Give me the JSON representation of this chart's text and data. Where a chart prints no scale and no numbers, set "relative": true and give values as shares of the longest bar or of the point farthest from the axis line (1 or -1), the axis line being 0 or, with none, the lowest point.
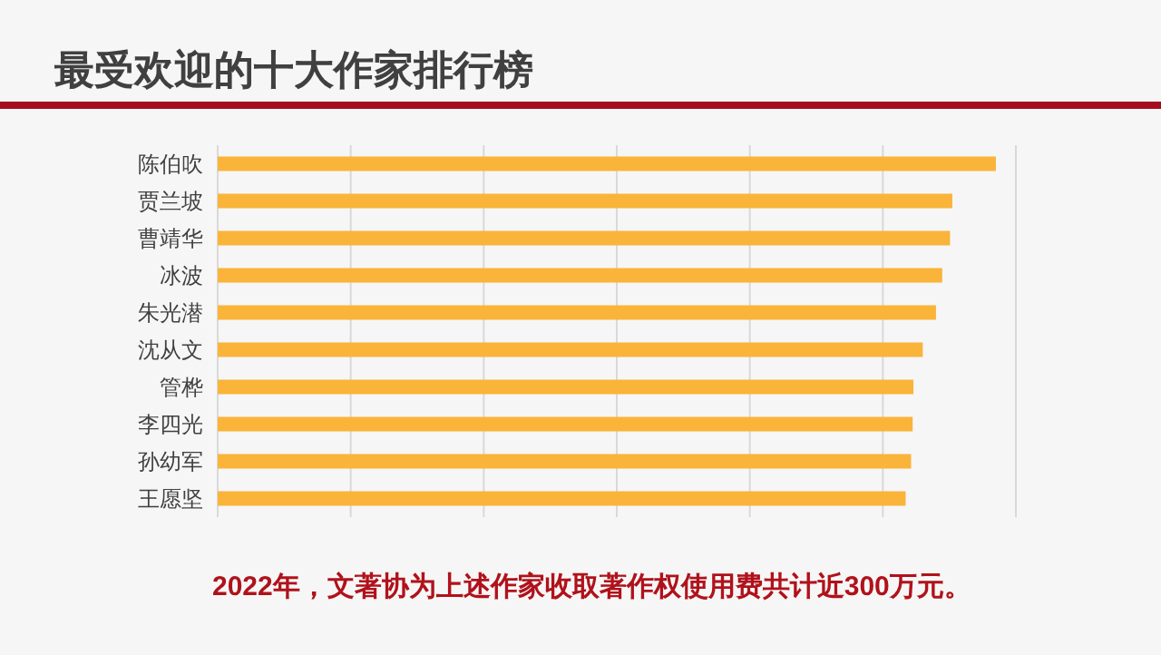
{
  "chart_data": {
    "type": "bar",
    "orientation": "horizontal",
    "relative": true,
    "title": "最受欢迎的十大作家排行榜",
    "categories": [
      "陈伯吹",
      "贾兰坡",
      "曹靖华",
      "冰波",
      "朱光潜",
      "沈从文",
      "管桦",
      "李四光",
      "孙幼军",
      "王愿坚"
    ],
    "values": [
      1,
      0.944,
      0.941,
      0.931,
      0.923,
      0.906,
      0.894,
      0.893,
      0.891,
      0.884
    ],
    "color": "#fab43a",
    "grid": "x",
    "annotations": [
      "2022年，文著协为上述作家收取著作权使用费共计近300万元。"
    ]
  }
}
